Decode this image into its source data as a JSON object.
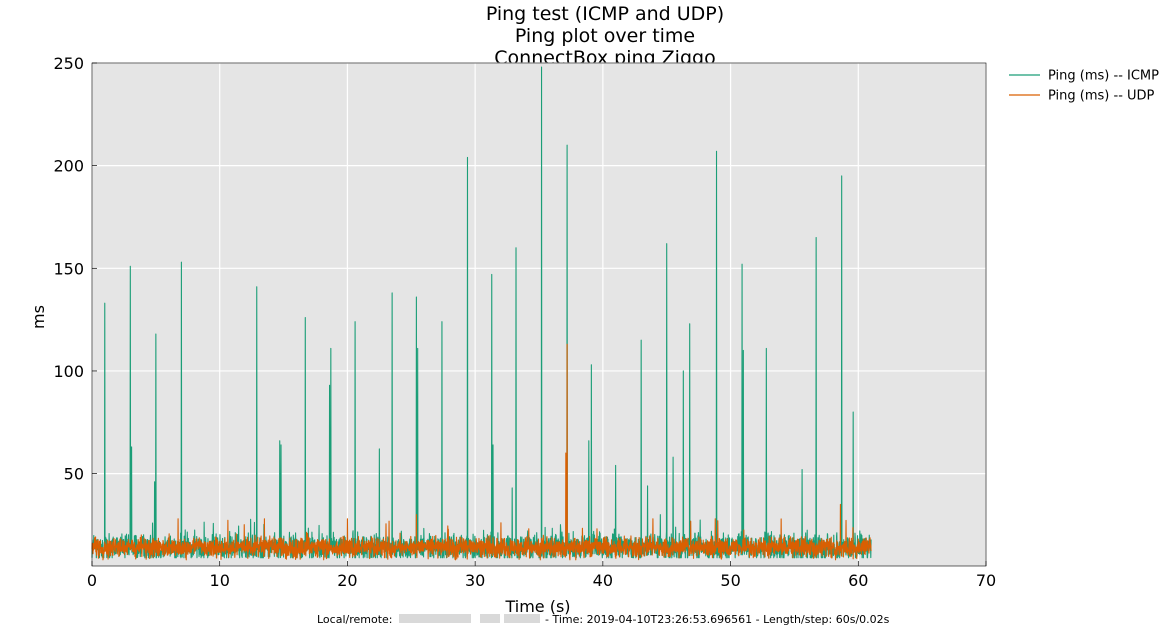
{
  "colors": {
    "plot_background": "#e5e5e5",
    "grid": "#ffffff",
    "icmp": "#1b9e77",
    "udp": "#d95f02",
    "redaction": "#d9d9d9"
  },
  "chart_data": {
    "type": "line",
    "title": [
      "Ping test (ICMP and UDP)",
      "Ping plot over time",
      "ConnectBox ping Ziggo"
    ],
    "xlabel": "Time (s)",
    "ylabel": "ms",
    "xlim": [
      0,
      70
    ],
    "ylim": [
      5,
      250
    ],
    "xticks": [
      0,
      10,
      20,
      30,
      40,
      50,
      60,
      70
    ],
    "xtick_labels": [
      "0",
      "10",
      "20",
      "30",
      "40",
      "50",
      "60",
      "70"
    ],
    "yticks": [
      50,
      100,
      150,
      200,
      250
    ],
    "ytick_labels": [
      "50",
      "100",
      "150",
      "200",
      "250"
    ],
    "grid": true,
    "legend": "outside-top-right",
    "sample_step_s": 0.02,
    "duration_s": 61,
    "series": [
      {
        "name": "Ping (ms) -- ICMP",
        "color_key": "icmp",
        "baseline": {
          "center": 14,
          "jitter": 4,
          "min": 9,
          "max": 30
        },
        "spikes": [
          [
            1.0,
            133
          ],
          [
            3.0,
            151
          ],
          [
            3.1,
            63
          ],
          [
            5.0,
            118
          ],
          [
            4.9,
            46
          ],
          [
            7.0,
            153
          ],
          [
            12.9,
            141
          ],
          [
            14.7,
            66
          ],
          [
            14.8,
            64
          ],
          [
            16.7,
            126
          ],
          [
            18.6,
            93
          ],
          [
            18.7,
            111
          ],
          [
            20.6,
            124
          ],
          [
            22.5,
            62
          ],
          [
            23.5,
            138
          ],
          [
            25.4,
            136
          ],
          [
            25.5,
            111
          ],
          [
            27.4,
            124
          ],
          [
            29.4,
            204
          ],
          [
            31.3,
            147
          ],
          [
            31.4,
            64
          ],
          [
            33.2,
            160
          ],
          [
            32.9,
            43
          ],
          [
            35.2,
            248
          ],
          [
            37.2,
            210
          ],
          [
            38.9,
            66
          ],
          [
            39.1,
            103
          ],
          [
            41.0,
            54
          ],
          [
            43.0,
            115
          ],
          [
            43.5,
            44
          ],
          [
            45.0,
            162
          ],
          [
            45.5,
            58
          ],
          [
            46.3,
            100
          ],
          [
            46.8,
            123
          ],
          [
            48.9,
            207
          ],
          [
            50.9,
            152
          ],
          [
            51.0,
            110
          ],
          [
            52.8,
            111
          ],
          [
            55.6,
            52
          ],
          [
            56.7,
            165
          ],
          [
            58.7,
            195
          ],
          [
            59.6,
            80
          ]
        ]
      },
      {
        "name": "Ping (ms) -- UDP",
        "color_key": "udp",
        "baseline": {
          "center": 14,
          "jitter": 3,
          "min": 8,
          "max": 28
        },
        "spikes": [
          [
            37.2,
            113
          ],
          [
            37.1,
            60
          ],
          [
            20.0,
            28
          ],
          [
            58.6,
            35
          ],
          [
            25.4,
            30
          ],
          [
            49.0,
            27
          ]
        ]
      }
    ]
  },
  "footer": {
    "prefix": "Local/remote:",
    "suffix": "- Time: 2019-04-10T23:26:53.696561 - Length/step: 60s/0.02s"
  }
}
